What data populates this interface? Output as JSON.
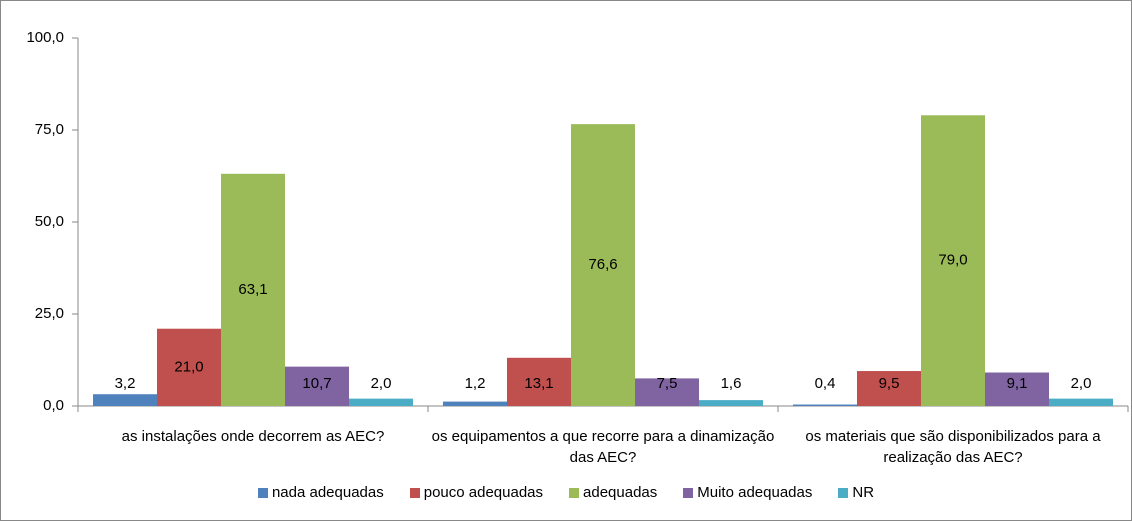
{
  "chart_data": {
    "type": "bar",
    "categories": [
      "as instalações onde decorrem as AEC?",
      "os equipamentos a que recorre para a dinamização das AEC?",
      "os materiais que são disponibilizados para a realização das AEC?"
    ],
    "series": [
      {
        "name": "nada adequadas",
        "color": "#4f81bd",
        "values": [
          3.2,
          1.2,
          0.4
        ],
        "value_labels": [
          "3,2",
          "1,2",
          "0,4"
        ]
      },
      {
        "name": "pouco adequadas",
        "color": "#c0504d",
        "values": [
          21.0,
          13.1,
          9.5
        ],
        "value_labels": [
          "21,0",
          "13,1",
          "9,5"
        ]
      },
      {
        "name": "adequadas",
        "color": "#9bbb59",
        "values": [
          63.1,
          76.6,
          79.0
        ],
        "value_labels": [
          "63,1",
          "76,6",
          "79,0"
        ]
      },
      {
        "name": "Muito adequadas",
        "color": "#8064a2",
        "values": [
          10.7,
          7.5,
          9.1
        ],
        "value_labels": [
          "10,7",
          "7,5",
          "9,1"
        ]
      },
      {
        "name": "NR",
        "color": "#4bacc6",
        "values": [
          2.0,
          1.6,
          2.0
        ],
        "value_labels": [
          "2,0",
          "1,6",
          "2,0"
        ]
      }
    ],
    "ylim": [
      0,
      100
    ],
    "yticks": [
      {
        "value": 0,
        "label": "0,0"
      },
      {
        "value": 25,
        "label": "25,0"
      },
      {
        "value": 50,
        "label": "50,0"
      },
      {
        "value": 75,
        "label": "75,0"
      },
      {
        "value": 100,
        "label": "100,0"
      }
    ],
    "legend": "bottom"
  }
}
